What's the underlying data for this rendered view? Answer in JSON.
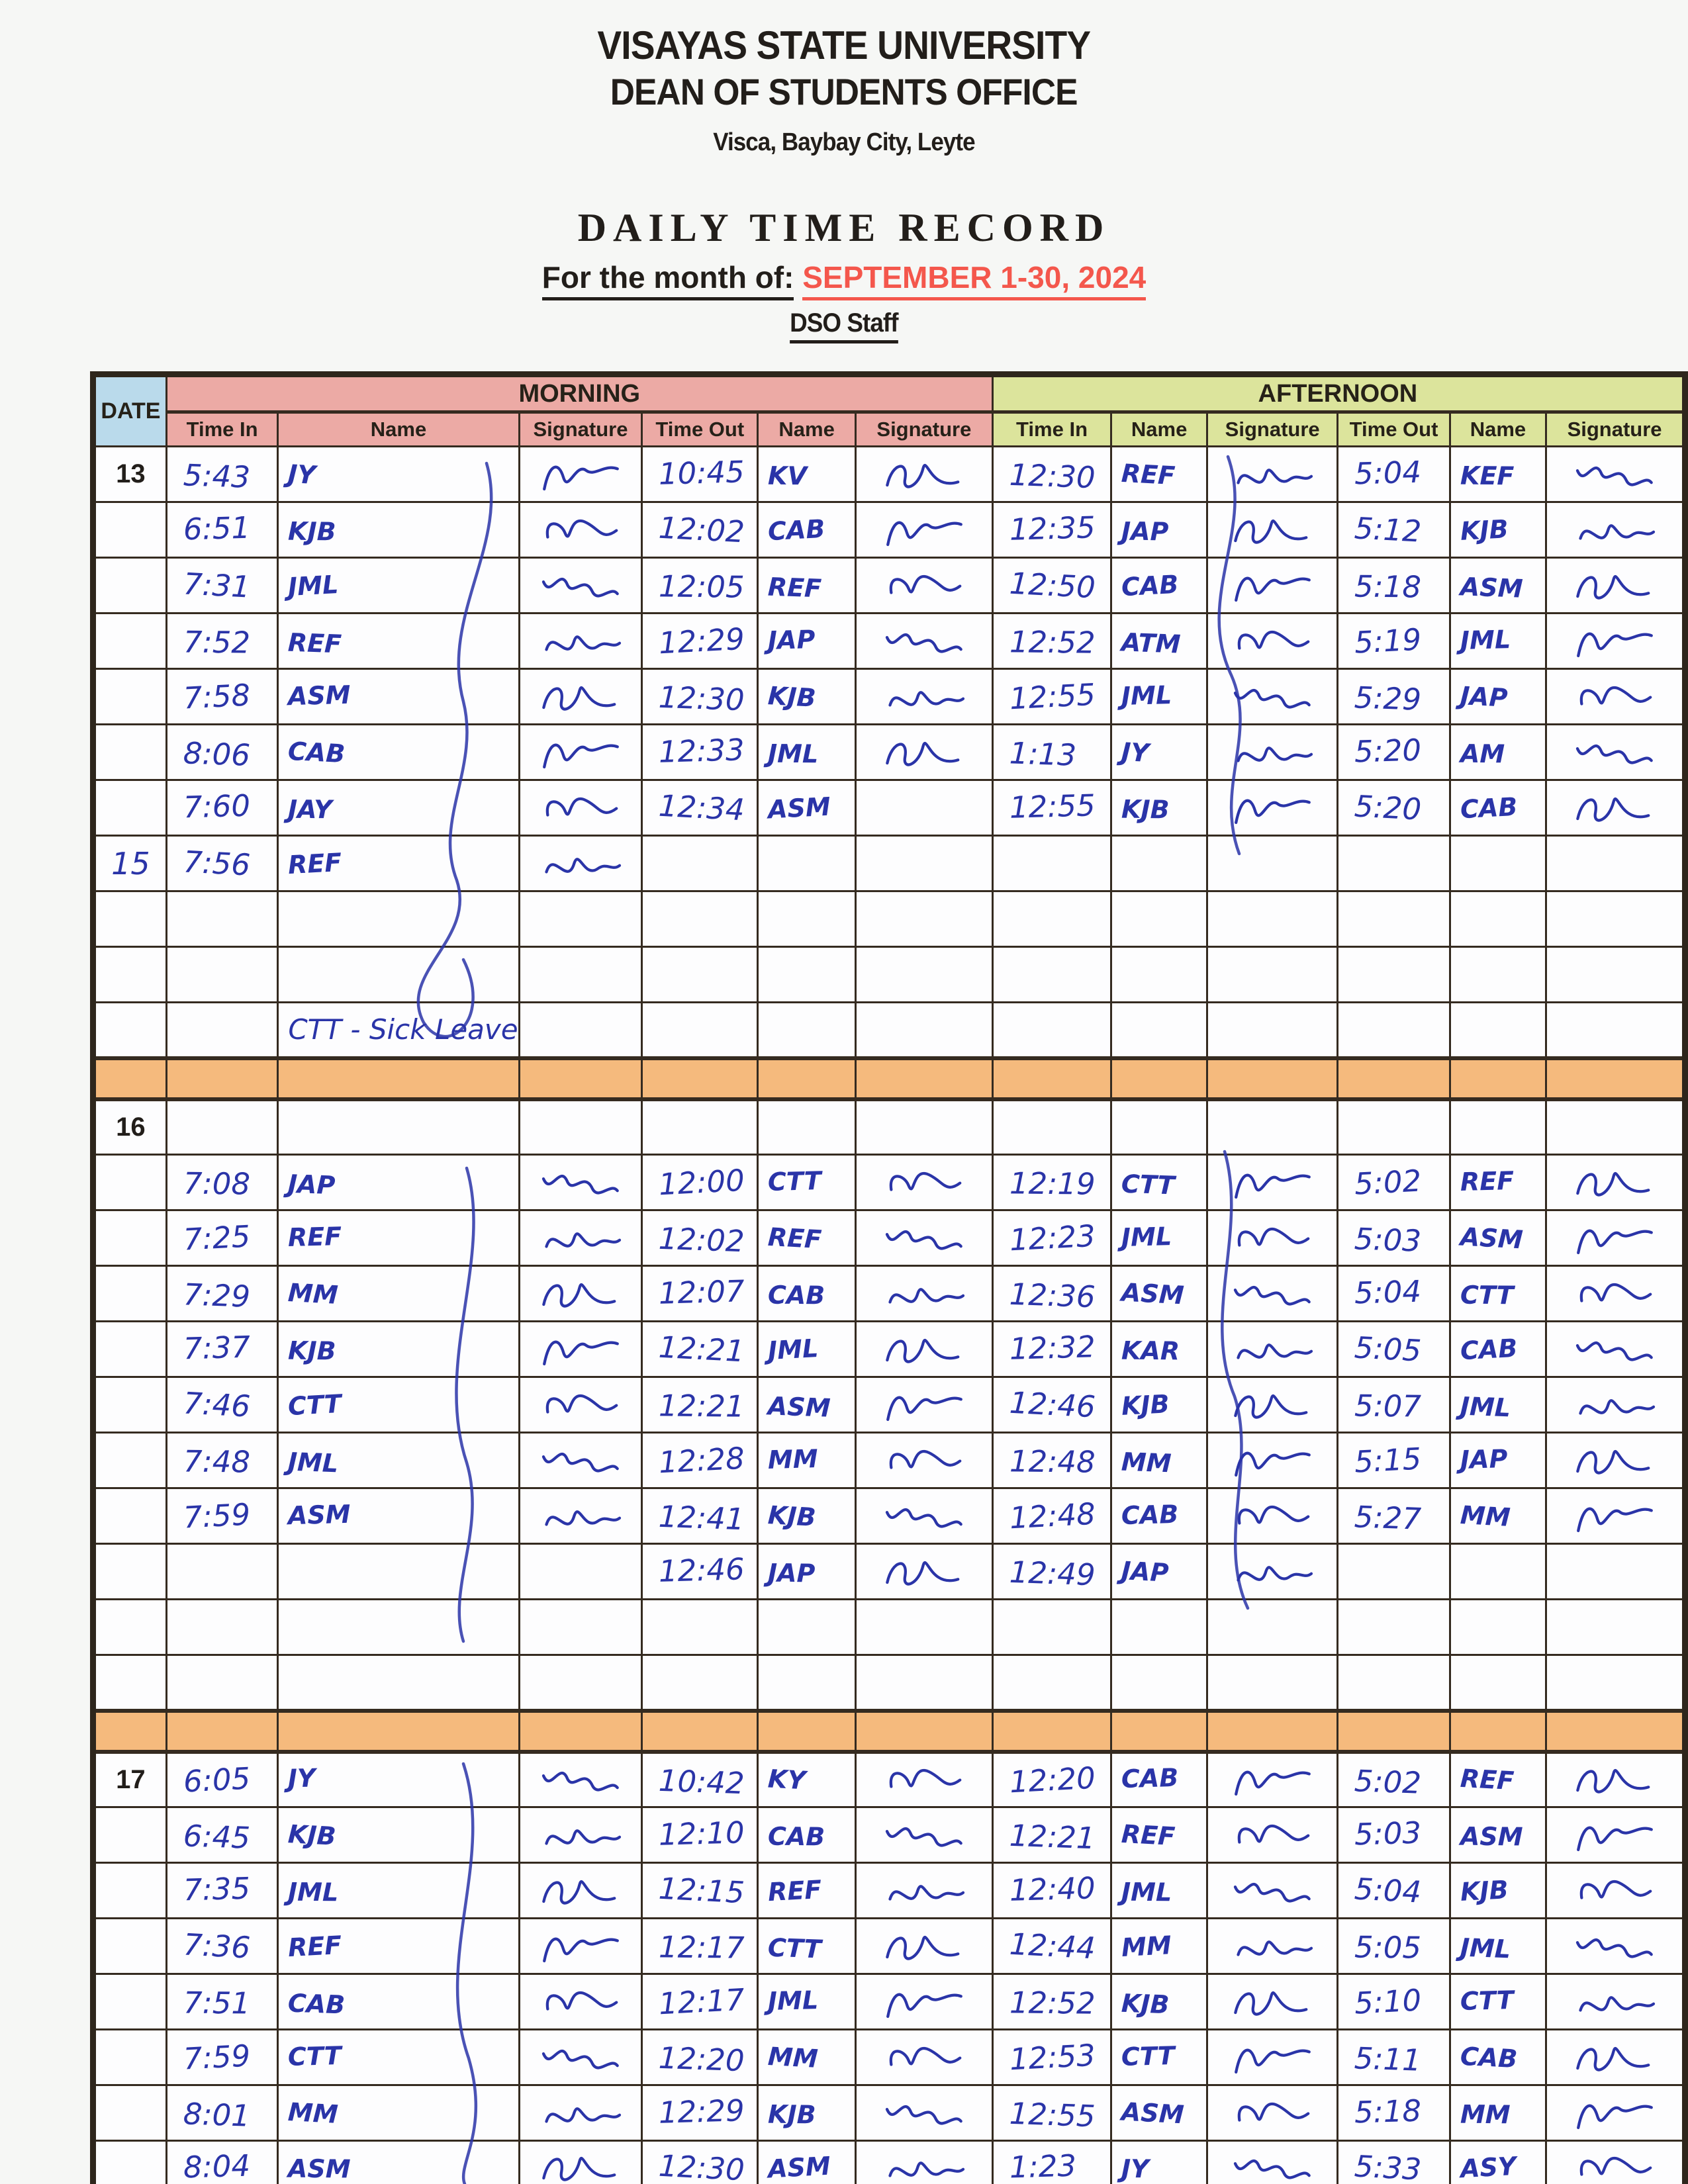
{
  "header": {
    "university": "VISAYAS STATE UNIVERSITY",
    "office": "DEAN OF STUDENTS OFFICE",
    "address": "Visca, Baybay City, Leyte",
    "title": "DAILY TIME RECORD",
    "month_label": "For the month of:",
    "month_value": "SEPTEMBER 1-30, 2024",
    "subtitle": "DSO Staff"
  },
  "table": {
    "date_header": "DATE",
    "sections": [
      "MORNING",
      "AFTERNOON"
    ],
    "sub_headers": [
      "Time In",
      "Name",
      "Signature",
      "Time Out",
      "Name",
      "Signature"
    ],
    "colors": {
      "morning_bg": "#ecaaa5",
      "afternoon_bg": "#dce49c",
      "date_bg": "#badaeb",
      "divider_bg": "#f5ba7d",
      "ink": "#2a34a8",
      "month_red": "#f4574c"
    },
    "rows": [
      {
        "date": "13",
        "date_style": "print",
        "m": [
          "5:43",
          "JY",
          true,
          "10:45",
          "KV",
          true
        ],
        "a": [
          "12:30",
          "REF",
          true,
          "5:04",
          "KEF",
          true
        ]
      },
      {
        "date": "",
        "date_style": "",
        "m": [
          "6:51",
          "KJB",
          true,
          "12:02",
          "CAB",
          true
        ],
        "a": [
          "12:35",
          "JAP",
          true,
          "5:12",
          "KJB",
          true
        ]
      },
      {
        "date": "",
        "date_style": "",
        "m": [
          "7:31",
          "JML",
          true,
          "12:05",
          "REF",
          true
        ],
        "a": [
          "12:50",
          "CAB",
          true,
          "5:18",
          "ASM",
          true
        ]
      },
      {
        "date": "",
        "date_style": "",
        "m": [
          "7:52",
          "REF",
          true,
          "12:29",
          "JAP",
          true
        ],
        "a": [
          "12:52",
          "ATM",
          true,
          "5:19",
          "JML",
          true
        ]
      },
      {
        "date": "",
        "date_style": "",
        "m": [
          "7:58",
          "ASM",
          true,
          "12:30",
          "KJB",
          true
        ],
        "a": [
          "12:55",
          "JML",
          true,
          "5:29",
          "JAP",
          true
        ]
      },
      {
        "date": "",
        "date_style": "",
        "m": [
          "8:06",
          "CAB",
          true,
          "12:33",
          "JML",
          true
        ],
        "a": [
          "1:13",
          "JY",
          true,
          "5:20",
          "AM",
          true
        ]
      },
      {
        "date": "",
        "date_style": "",
        "m": [
          "7:60",
          "JAY",
          true,
          "12:34",
          "ASM",
          false
        ],
        "a": [
          "12:55",
          "KJB",
          true,
          "5:20",
          "CAB",
          true
        ]
      },
      {
        "date": "15",
        "date_style": "hand",
        "m": [
          "7:56",
          "REF",
          true,
          "",
          "",
          false
        ],
        "a": [
          "",
          "",
          false,
          "",
          "",
          false
        ]
      },
      {
        "date": "",
        "date_style": "",
        "m": [
          "",
          "",
          false,
          "",
          "",
          false
        ],
        "a": [
          "",
          "",
          false,
          "",
          "",
          false
        ]
      },
      {
        "date": "",
        "date_style": "",
        "m": [
          "",
          "",
          false,
          "",
          "",
          false
        ],
        "a": [
          "",
          "",
          false,
          "",
          "",
          false
        ]
      },
      {
        "date": "",
        "date_style": "",
        "note": "CTT - Sick Leave",
        "m": [
          "",
          "",
          false,
          "",
          "",
          false
        ],
        "a": [
          "",
          "",
          false,
          "",
          "",
          false
        ]
      },
      {
        "type": "divider"
      },
      {
        "date": "16",
        "date_style": "print",
        "m": [
          "",
          "",
          false,
          "",
          "",
          false
        ],
        "a": [
          "",
          "",
          false,
          "",
          "",
          false
        ]
      },
      {
        "date": "",
        "date_style": "",
        "m": [
          "7:08",
          "JAP",
          true,
          "12:00",
          "CTT",
          true
        ],
        "a": [
          "12:19",
          "CTT",
          true,
          "5:02",
          "REF",
          true
        ]
      },
      {
        "date": "",
        "date_style": "",
        "m": [
          "7:25",
          "REF",
          true,
          "12:02",
          "REF",
          true
        ],
        "a": [
          "12:23",
          "JML",
          true,
          "5:03",
          "ASM",
          true
        ]
      },
      {
        "date": "",
        "date_style": "",
        "m": [
          "7:29",
          "MM",
          true,
          "12:07",
          "CAB",
          true
        ],
        "a": [
          "12:36",
          "ASM",
          true,
          "5:04",
          "CTT",
          true
        ]
      },
      {
        "date": "",
        "date_style": "",
        "m": [
          "7:37",
          "KJB",
          true,
          "12:21",
          "JML",
          true
        ],
        "a": [
          "12:32",
          "KAR",
          true,
          "5:05",
          "CAB",
          true
        ]
      },
      {
        "date": "",
        "date_style": "",
        "m": [
          "7:46",
          "CTT",
          true,
          "12:21",
          "ASM",
          true
        ],
        "a": [
          "12:46",
          "KJB",
          true,
          "5:07",
          "JML",
          true
        ]
      },
      {
        "date": "",
        "date_style": "",
        "m": [
          "7:48",
          "JML",
          true,
          "12:28",
          "MM",
          true
        ],
        "a": [
          "12:48",
          "MM",
          true,
          "5:15",
          "JAP",
          true
        ]
      },
      {
        "date": "",
        "date_style": "",
        "m": [
          "7:59",
          "ASM",
          true,
          "12:41",
          "KJB",
          true
        ],
        "a": [
          "12:48",
          "CAB",
          true,
          "5:27",
          "MM",
          true
        ]
      },
      {
        "date": "",
        "date_style": "",
        "m": [
          "",
          "",
          false,
          "12:46",
          "JAP",
          true
        ],
        "a": [
          "12:49",
          "JAP",
          true,
          "",
          "",
          false
        ]
      },
      {
        "date": "",
        "date_style": "",
        "m": [
          "",
          "",
          false,
          "",
          "",
          false
        ],
        "a": [
          "",
          "",
          false,
          "",
          "",
          false
        ]
      },
      {
        "date": "",
        "date_style": "",
        "m": [
          "",
          "",
          false,
          "",
          "",
          false
        ],
        "a": [
          "",
          "",
          false,
          "",
          "",
          false
        ]
      },
      {
        "type": "divider"
      },
      {
        "date": "17",
        "date_style": "print",
        "m": [
          "6:05",
          "JY",
          true,
          "10:42",
          "KY",
          true
        ],
        "a": [
          "12:20",
          "CAB",
          true,
          "5:02",
          "REF",
          true
        ]
      },
      {
        "date": "",
        "date_style": "",
        "m": [
          "6:45",
          "KJB",
          true,
          "12:10",
          "CAB",
          true
        ],
        "a": [
          "12:21",
          "REF",
          true,
          "5:03",
          "ASM",
          true
        ]
      },
      {
        "date": "",
        "date_style": "",
        "m": [
          "7:35",
          "JML",
          true,
          "12:15",
          "REF",
          true
        ],
        "a": [
          "12:40",
          "JML",
          true,
          "5:04",
          "KJB",
          true
        ]
      },
      {
        "date": "",
        "date_style": "",
        "m": [
          "7:36",
          "REF",
          true,
          "12:17",
          "CTT",
          true
        ],
        "a": [
          "12:44",
          "MM",
          true,
          "5:05",
          "JML",
          true
        ]
      },
      {
        "date": "",
        "date_style": "",
        "m": [
          "7:51",
          "CAB",
          true,
          "12:17",
          "JML",
          true
        ],
        "a": [
          "12:52",
          "KJB",
          true,
          "5:10",
          "CTT",
          true
        ]
      },
      {
        "date": "",
        "date_style": "",
        "m": [
          "7:59",
          "CTT",
          true,
          "12:20",
          "MM",
          true
        ],
        "a": [
          "12:53",
          "CTT",
          true,
          "5:11",
          "CAB",
          true
        ]
      },
      {
        "date": "",
        "date_style": "",
        "m": [
          "8:01",
          "MM",
          true,
          "12:29",
          "KJB",
          true
        ],
        "a": [
          "12:55",
          "ASM",
          true,
          "5:18",
          "MM",
          true
        ]
      },
      {
        "date": "",
        "date_style": "",
        "m": [
          "8:04",
          "ASM",
          true,
          "12:30",
          "ASM",
          true
        ],
        "a": [
          "1:23",
          "JY",
          true,
          "5:33",
          "ASY",
          true
        ]
      }
    ]
  }
}
